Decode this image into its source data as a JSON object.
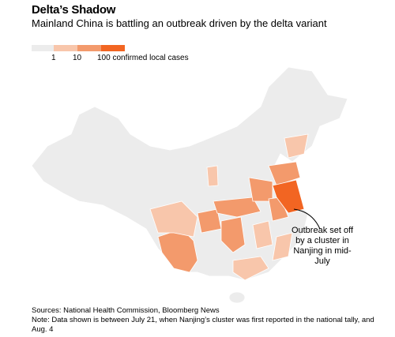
{
  "header": {
    "title": "Delta’s Shadow",
    "subtitle": "Mainland China is battling an outbreak driven by the delta variant"
  },
  "legend": {
    "labels": [
      "1",
      "10",
      "100 confirmed local cases"
    ]
  },
  "annotation": "Outbreak set off by a cluster in Nanjing in mid-July",
  "footer": {
    "sources": "Sources: National Health Commission, Bloomberg News",
    "note": "Note: Data shown is between July 21, when Nanjing’s cluster was first reported in the national tally, and Aug. 4"
  }
}
